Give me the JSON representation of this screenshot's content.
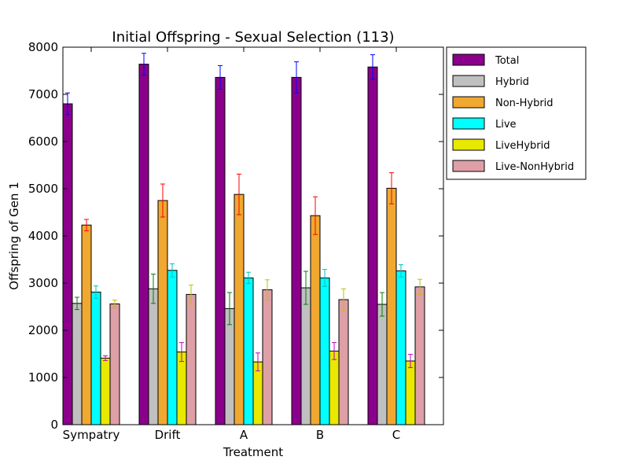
{
  "chart_data": {
    "type": "bar",
    "title": "Initial Offspring - Sexual Selection (113)",
    "xlabel": "Treatment",
    "ylabel": "Offspring of Gen 1",
    "ylim": [
      0,
      8000
    ],
    "yticks": [
      0,
      1000,
      2000,
      3000,
      4000,
      5000,
      6000,
      7000,
      8000
    ],
    "grid": false,
    "legend_position": "outside-right",
    "categories": [
      "Sympatry",
      "Drift",
      "A",
      "B",
      "C"
    ],
    "series": [
      {
        "name": "Total",
        "color": "#8b008b",
        "error_color": "#0000ff",
        "values": [
          6800,
          7640,
          7360,
          7360,
          7580
        ],
        "errors": [
          230,
          230,
          250,
          330,
          260
        ]
      },
      {
        "name": "Hybrid",
        "color": "#c0c0c0",
        "error_color": "#008000",
        "values": [
          2570,
          2880,
          2460,
          2900,
          2550
        ],
        "errors": [
          130,
          310,
          340,
          350,
          250
        ]
      },
      {
        "name": "Non-Hybrid",
        "color": "#f0a830",
        "error_color": "#ff0000",
        "values": [
          4230,
          4750,
          4880,
          4430,
          5010
        ],
        "errors": [
          120,
          350,
          430,
          400,
          330
        ]
      },
      {
        "name": "Live",
        "color": "#00ffff",
        "error_color": "#00bfbf",
        "values": [
          2810,
          3270,
          3110,
          3110,
          3260
        ],
        "errors": [
          130,
          140,
          120,
          180,
          130
        ]
      },
      {
        "name": "LiveHybrid",
        "color": "#e8e800",
        "error_color": "#bf00bf",
        "values": [
          1410,
          1540,
          1330,
          1560,
          1350
        ],
        "errors": [
          50,
          200,
          190,
          180,
          140
        ]
      },
      {
        "name": "Live-NonHybrid",
        "color": "#de9fa6",
        "error_color": "#bfbf00",
        "values": [
          2560,
          2760,
          2860,
          2650,
          2920
        ],
        "errors": [
          80,
          200,
          210,
          230,
          160
        ]
      }
    ]
  }
}
